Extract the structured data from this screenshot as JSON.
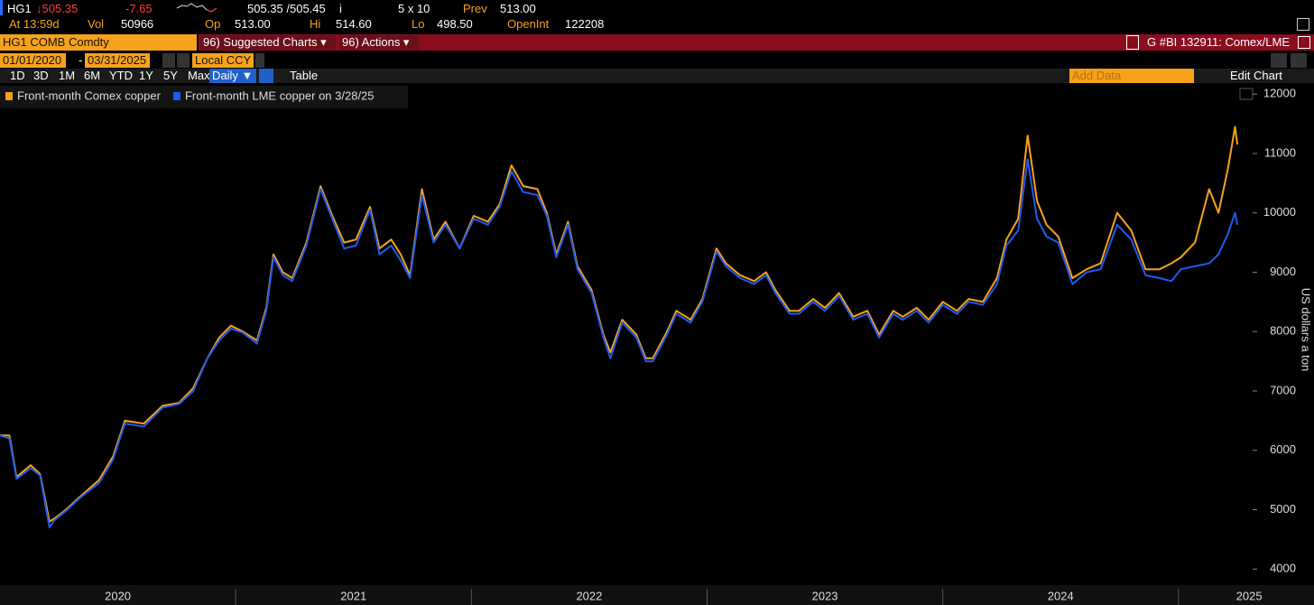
{
  "header": {
    "ticker": "HG1",
    "last": "↓505.35",
    "change": "-7.65",
    "bid_ask": "505.35 /505.45",
    "info": "i",
    "size": "5 x 10",
    "prev_label": "Prev",
    "prev": "513.00"
  },
  "quote": {
    "time": "At 13:59d",
    "vol_label": "Vol",
    "vol": "50966",
    "op_label": "Op",
    "op": "513.00",
    "hi_label": "Hi",
    "hi": "514.60",
    "lo_label": "Lo",
    "lo": "498.50",
    "oi_label": "OpenInt",
    "oi": "122208"
  },
  "toolbar": {
    "security": "HG1 COMB Comdty",
    "suggested": "96) Suggested Charts ▾",
    "actions": "96) Actions ▾",
    "chart_id": "G #BI 132911: Comex/LME"
  },
  "range": {
    "start": "01/01/2020",
    "sep": "-",
    "end": "03/31/2025",
    "currency": "Local CCY"
  },
  "periods": [
    "1D",
    "3D",
    "1M",
    "6M",
    "YTD",
    "1Y",
    "5Y",
    "Max"
  ],
  "frequency": "Daily ▼",
  "table": "Table",
  "add_data": "Add Data",
  "edit_chart": "Edit Chart",
  "chart_data": {
    "type": "line",
    "y_label": "US dollars a ton",
    "x": [
      2020.0,
      2020.04,
      2020.07,
      2020.13,
      2020.17,
      2020.21,
      2020.23,
      2020.28,
      2020.34,
      2020.42,
      2020.48,
      2020.53,
      2020.61,
      2020.69,
      2020.76,
      2020.82,
      2020.88,
      2020.93,
      2020.98,
      2021.03,
      2021.09,
      2021.13,
      2021.16,
      2021.2,
      2021.24,
      2021.3,
      2021.36,
      2021.41,
      2021.46,
      2021.51,
      2021.57,
      2021.61,
      2021.66,
      2021.7,
      2021.74,
      2021.79,
      2021.84,
      2021.89,
      2021.95,
      2022.01,
      2022.07,
      2022.12,
      2022.17,
      2022.22,
      2022.28,
      2022.32,
      2022.36,
      2022.41,
      2022.45,
      2022.51,
      2022.56,
      2022.59,
      2022.64,
      2022.7,
      2022.74,
      2022.77,
      2022.83,
      2022.87,
      2022.93,
      2022.98,
      2023.04,
      2023.08,
      2023.14,
      2023.2,
      2023.25,
      2023.29,
      2023.35,
      2023.39,
      2023.45,
      2023.5,
      2023.56,
      2023.62,
      2023.68,
      2023.73,
      2023.79,
      2023.83,
      2023.89,
      2023.94,
      2024.0,
      2024.06,
      2024.11,
      2024.17,
      2024.23,
      2024.27,
      2024.32,
      2024.36,
      2024.4,
      2024.44,
      2024.49,
      2024.55,
      2024.61,
      2024.67,
      2024.74,
      2024.8,
      2024.86,
      2024.92,
      2024.97,
      2025.01,
      2025.07,
      2025.13,
      2025.17,
      2025.21,
      2025.24,
      2025.25
    ],
    "series": [
      {
        "name": "Front-month Comex copper",
        "color": "#f7a21b",
        "values": [
          6250,
          6250,
          5550,
          5750,
          5600,
          4800,
          4850,
          5000,
          5220,
          5500,
          5900,
          6500,
          6450,
          6750,
          6800,
          7050,
          7550,
          7900,
          8100,
          8000,
          7850,
          8400,
          9300,
          9000,
          8900,
          9500,
          10450,
          9950,
          9500,
          9550,
          10100,
          9400,
          9550,
          9300,
          8950,
          10400,
          9550,
          9850,
          9400,
          9950,
          9850,
          10150,
          10800,
          10450,
          10400,
          10000,
          9300,
          9850,
          9100,
          8700,
          7950,
          7650,
          8200,
          7950,
          7550,
          7550,
          8000,
          8350,
          8200,
          8550,
          9400,
          9150,
          8950,
          8850,
          9000,
          8700,
          8350,
          8350,
          8550,
          8400,
          8650,
          8250,
          8350,
          7950,
          8350,
          8250,
          8400,
          8200,
          8500,
          8350,
          8550,
          8500,
          8900,
          9550,
          9900,
          11300,
          10200,
          9800,
          9600,
          8900,
          9050,
          9150,
          10000,
          9700,
          9050,
          9050,
          9150,
          9250,
          9500,
          10400,
          10000,
          10750,
          11450,
          11150
        ]
      },
      {
        "name": "Front-month LME copper on 3/28/25",
        "color": "#1f5bf0",
        "values": [
          6250,
          6200,
          5520,
          5700,
          5580,
          4700,
          4820,
          4980,
          5200,
          5450,
          5850,
          6450,
          6400,
          6720,
          6780,
          7000,
          7550,
          7850,
          8050,
          7980,
          7800,
          8350,
          9250,
          8950,
          8850,
          9450,
          10400,
          9900,
          9400,
          9450,
          10050,
          9300,
          9450,
          9200,
          8900,
          10300,
          9500,
          9800,
          9400,
          9900,
          9800,
          10100,
          10700,
          10350,
          10300,
          9950,
          9250,
          9800,
          9050,
          8650,
          7900,
          7550,
          8150,
          7900,
          7500,
          7500,
          7950,
          8300,
          8150,
          8500,
          9350,
          9100,
          8900,
          8800,
          8950,
          8650,
          8300,
          8300,
          8500,
          8350,
          8600,
          8200,
          8300,
          7900,
          8300,
          8200,
          8350,
          8150,
          8450,
          8300,
          8500,
          8450,
          8800,
          9450,
          9700,
          10900,
          9900,
          9600,
          9500,
          8800,
          9000,
          9050,
          9800,
          9550,
          8950,
          8900,
          8850,
          9050,
          9100,
          9150,
          9300,
          9650,
          10000,
          9800
        ]
      }
    ],
    "xlim": [
      2020,
      2025.575
    ],
    "xticks": [
      {
        "value": 2020.5,
        "label": "2020"
      },
      {
        "value": 2021.5,
        "label": "2021"
      },
      {
        "value": 2022.5,
        "label": "2022"
      },
      {
        "value": 2023.5,
        "label": "2023"
      },
      {
        "value": 2024.5,
        "label": "2024"
      },
      {
        "value": 2025.3,
        "label": "2025"
      }
    ],
    "ylim": [
      3730,
      12140
    ],
    "yticks": [
      4000,
      5000,
      6000,
      7000,
      8000,
      9000,
      10000,
      11000,
      12000
    ]
  }
}
